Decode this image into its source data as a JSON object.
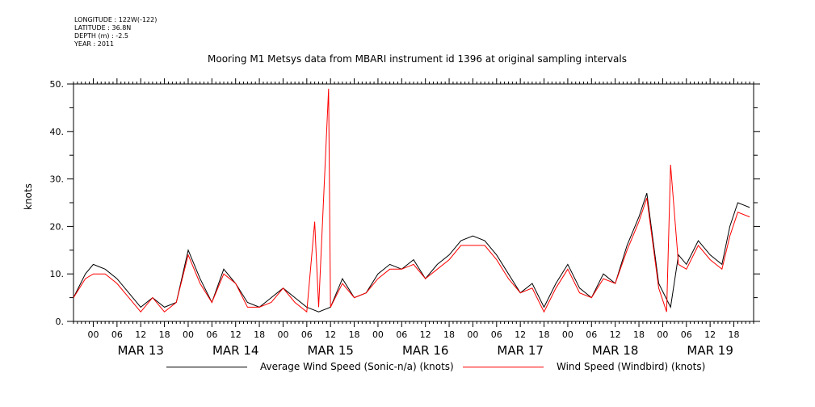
{
  "meta": {
    "longitude": "LONGITUDE : 122W(-122)",
    "latitude": "LATITUDE : 36.8N",
    "depth": "DEPTH (m) : -2.5",
    "year": "YEAR : 2011"
  },
  "chart_data": {
    "type": "line",
    "title": "Mooring M1 Metsys data from MBARI instrument id 1396 at original sampling intervals",
    "xlabel": "",
    "ylabel": "knots",
    "ylim": [
      0,
      50
    ],
    "xlim": [
      "2011-03-12T19:00",
      "2011-03-19T23:00"
    ],
    "y_ticks": [
      "0.",
      "10.",
      "20.",
      "30.",
      "40.",
      "50."
    ],
    "x_hour_ticks": [
      "00",
      "06",
      "12",
      "18"
    ],
    "x_day_labels": [
      "MAR 13",
      "MAR 14",
      "MAR 15",
      "MAR 16",
      "MAR 17",
      "MAR 18",
      "MAR 19"
    ],
    "grid": false,
    "legend": "bottom",
    "colors": {
      "sonic": "#000000",
      "windbird": "#ff0000"
    },
    "series": [
      {
        "name": "Average Wind Speed (Sonic-n/a) (knots)",
        "color": "#000000",
        "points": [
          [
            "2011-03-12T19:00",
            5
          ],
          [
            "2011-03-12T22:00",
            10
          ],
          [
            "2011-03-13T00:00",
            12
          ],
          [
            "2011-03-13T03:00",
            11
          ],
          [
            "2011-03-13T06:00",
            9
          ],
          [
            "2011-03-13T09:00",
            6
          ],
          [
            "2011-03-13T12:00",
            3
          ],
          [
            "2011-03-13T15:00",
            5
          ],
          [
            "2011-03-13T18:00",
            3
          ],
          [
            "2011-03-13T21:00",
            4
          ],
          [
            "2011-03-14T00:00",
            15
          ],
          [
            "2011-03-14T03:00",
            9
          ],
          [
            "2011-03-14T06:00",
            4
          ],
          [
            "2011-03-14T09:00",
            11
          ],
          [
            "2011-03-14T12:00",
            8
          ],
          [
            "2011-03-14T15:00",
            4
          ],
          [
            "2011-03-14T18:00",
            3
          ],
          [
            "2011-03-14T21:00",
            5
          ],
          [
            "2011-03-15T00:00",
            7
          ],
          [
            "2011-03-15T03:00",
            5
          ],
          [
            "2011-03-15T06:00",
            3
          ],
          [
            "2011-03-15T09:00",
            2
          ],
          [
            "2011-03-15T12:00",
            3
          ],
          [
            "2011-03-15T15:00",
            9
          ],
          [
            "2011-03-15T18:00",
            5
          ],
          [
            "2011-03-15T21:00",
            6
          ],
          [
            "2011-03-16T00:00",
            10
          ],
          [
            "2011-03-16T03:00",
            12
          ],
          [
            "2011-03-16T06:00",
            11
          ],
          [
            "2011-03-16T09:00",
            13
          ],
          [
            "2011-03-16T12:00",
            9
          ],
          [
            "2011-03-16T15:00",
            12
          ],
          [
            "2011-03-16T18:00",
            14
          ],
          [
            "2011-03-16T21:00",
            17
          ],
          [
            "2011-03-17T00:00",
            18
          ],
          [
            "2011-03-17T03:00",
            17
          ],
          [
            "2011-03-17T06:00",
            14
          ],
          [
            "2011-03-17T09:00",
            10
          ],
          [
            "2011-03-17T12:00",
            6
          ],
          [
            "2011-03-17T15:00",
            8
          ],
          [
            "2011-03-17T18:00",
            3
          ],
          [
            "2011-03-17T21:00",
            8
          ],
          [
            "2011-03-18T00:00",
            12
          ],
          [
            "2011-03-18T03:00",
            7
          ],
          [
            "2011-03-18T06:00",
            5
          ],
          [
            "2011-03-18T09:00",
            10
          ],
          [
            "2011-03-18T12:00",
            8
          ],
          [
            "2011-03-18T15:00",
            16
          ],
          [
            "2011-03-18T18:00",
            22
          ],
          [
            "2011-03-18T20:00",
            27
          ],
          [
            "2011-03-18T23:00",
            8
          ],
          [
            "2011-03-19T02:00",
            3
          ],
          [
            "2011-03-19T04:00",
            14
          ],
          [
            "2011-03-19T06:00",
            12
          ],
          [
            "2011-03-19T09:00",
            17
          ],
          [
            "2011-03-19T12:00",
            14
          ],
          [
            "2011-03-19T15:00",
            12
          ],
          [
            "2011-03-19T17:00",
            20
          ],
          [
            "2011-03-19T19:00",
            25
          ],
          [
            "2011-03-19T22:00",
            24
          ]
        ]
      },
      {
        "name": "Wind Speed (Windbird) (knots)",
        "color": "#ff0000",
        "points": [
          [
            "2011-03-12T19:00",
            5
          ],
          [
            "2011-03-12T22:00",
            9
          ],
          [
            "2011-03-13T00:00",
            10
          ],
          [
            "2011-03-13T03:00",
            10
          ],
          [
            "2011-03-13T06:00",
            8
          ],
          [
            "2011-03-13T09:00",
            5
          ],
          [
            "2011-03-13T12:00",
            2
          ],
          [
            "2011-03-13T15:00",
            5
          ],
          [
            "2011-03-13T18:00",
            2
          ],
          [
            "2011-03-13T21:00",
            4
          ],
          [
            "2011-03-14T00:00",
            14
          ],
          [
            "2011-03-14T03:00",
            8
          ],
          [
            "2011-03-14T06:00",
            4
          ],
          [
            "2011-03-14T09:00",
            10
          ],
          [
            "2011-03-14T12:00",
            8
          ],
          [
            "2011-03-14T15:00",
            3
          ],
          [
            "2011-03-14T18:00",
            3
          ],
          [
            "2011-03-14T21:00",
            4
          ],
          [
            "2011-03-15T00:00",
            7
          ],
          [
            "2011-03-15T03:00",
            4
          ],
          [
            "2011-03-15T06:00",
            2
          ],
          [
            "2011-03-15T08:00",
            21
          ],
          [
            "2011-03-15T09:00",
            3
          ],
          [
            "2011-03-15T11:30",
            49
          ],
          [
            "2011-03-15T12:00",
            3
          ],
          [
            "2011-03-15T15:00",
            8
          ],
          [
            "2011-03-15T18:00",
            5
          ],
          [
            "2011-03-15T21:00",
            6
          ],
          [
            "2011-03-16T00:00",
            9
          ],
          [
            "2011-03-16T03:00",
            11
          ],
          [
            "2011-03-16T06:00",
            11
          ],
          [
            "2011-03-16T09:00",
            12
          ],
          [
            "2011-03-16T12:00",
            9
          ],
          [
            "2011-03-16T15:00",
            11
          ],
          [
            "2011-03-16T18:00",
            13
          ],
          [
            "2011-03-16T21:00",
            16
          ],
          [
            "2011-03-17T00:00",
            16
          ],
          [
            "2011-03-17T03:00",
            16
          ],
          [
            "2011-03-17T06:00",
            13
          ],
          [
            "2011-03-17T09:00",
            9
          ],
          [
            "2011-03-17T12:00",
            6
          ],
          [
            "2011-03-17T15:00",
            7
          ],
          [
            "2011-03-17T18:00",
            2
          ],
          [
            "2011-03-17T21:00",
            7
          ],
          [
            "2011-03-18T00:00",
            11
          ],
          [
            "2011-03-18T03:00",
            6
          ],
          [
            "2011-03-18T06:00",
            5
          ],
          [
            "2011-03-18T09:00",
            9
          ],
          [
            "2011-03-18T12:00",
            8
          ],
          [
            "2011-03-18T15:00",
            15
          ],
          [
            "2011-03-18T18:00",
            21
          ],
          [
            "2011-03-18T20:00",
            26
          ],
          [
            "2011-03-18T23:00",
            7
          ],
          [
            "2011-03-19T01:00",
            2
          ],
          [
            "2011-03-19T02:00",
            33
          ],
          [
            "2011-03-19T04:00",
            12
          ],
          [
            "2011-03-19T06:00",
            11
          ],
          [
            "2011-03-19T09:00",
            16
          ],
          [
            "2011-03-19T12:00",
            13
          ],
          [
            "2011-03-19T15:00",
            11
          ],
          [
            "2011-03-19T17:00",
            18
          ],
          [
            "2011-03-19T19:00",
            23
          ],
          [
            "2011-03-19T22:00",
            22
          ]
        ]
      }
    ]
  }
}
